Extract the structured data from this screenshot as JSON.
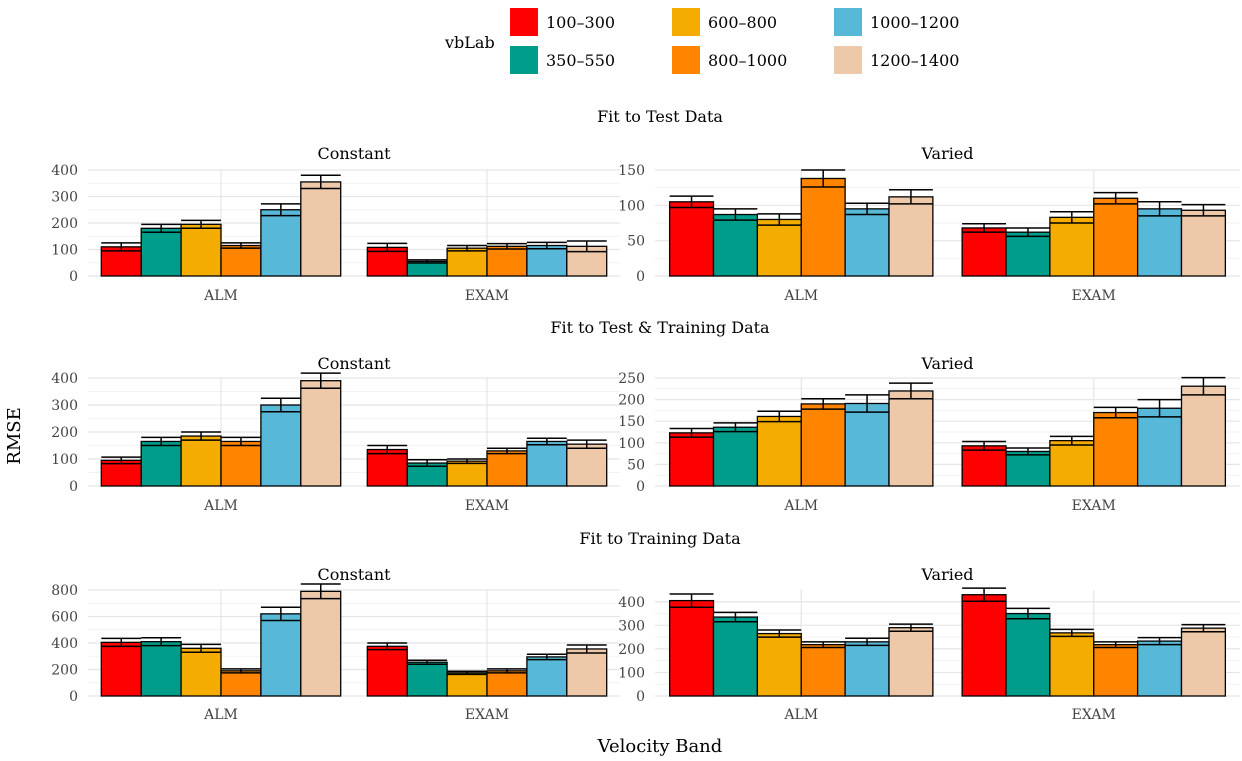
{
  "chart_data": {
    "type": "bar",
    "legend": {
      "title": "vbLab",
      "position": "top",
      "entries": [
        {
          "label": "100–300",
          "color": "#ff0000"
        },
        {
          "label": "350–550",
          "color": "#009e8a"
        },
        {
          "label": "600–800",
          "color": "#f5ac00"
        },
        {
          "label": "800–1000",
          "color": "#ff8400"
        },
        {
          "label": "1000–1200",
          "color": "#57b9d7"
        },
        {
          "label": "1200–1400",
          "color": "#edc9a9"
        }
      ]
    },
    "ylabel": "RMSE",
    "xlabel": "Velocity Band",
    "categories": [
      "ALM",
      "EXAM"
    ],
    "grid": true,
    "rows": [
      {
        "title": "Fit to Test Data",
        "panels": [
          {
            "title": "Constant",
            "ylim": [
              0,
              400
            ],
            "yticks": [
              0,
              100,
              200,
              300,
              400
            ],
            "values": [
              [
                110,
                180,
                195,
                115,
                250,
                355
              ],
              [
                108,
                55,
                105,
                112,
                115,
                112
              ]
            ],
            "errors": [
              [
                15,
                15,
                15,
                10,
                22,
                25
              ],
              [
                15,
                6,
                10,
                10,
                12,
                20
              ]
            ]
          },
          {
            "title": "Varied",
            "ylim": [
              0,
              150
            ],
            "yticks": [
              0,
              50,
              100,
              150
            ],
            "values": [
              [
                105,
                87,
                80,
                138,
                95,
                112
              ],
              [
                68,
                62,
                83,
                110,
                95,
                93
              ]
            ],
            "errors": [
              [
                8,
                8,
                8,
                12,
                8,
                10
              ],
              [
                6,
                6,
                8,
                8,
                10,
                8
              ]
            ]
          }
        ]
      },
      {
        "title": "Fit to Test & Training Data",
        "panels": [
          {
            "title": "Constant",
            "ylim": [
              0,
              400
            ],
            "yticks": [
              0,
              100,
              200,
              300,
              400
            ],
            "values": [
              [
                95,
                165,
                185,
                165,
                300,
                390
              ],
              [
                135,
                85,
                92,
                130,
                165,
                155
              ]
            ],
            "errors": [
              [
                12,
                15,
                15,
                15,
                25,
                28
              ],
              [
                15,
                12,
                8,
                10,
                12,
                15
              ]
            ]
          },
          {
            "title": "Varied",
            "ylim": [
              0,
              250
            ],
            "yticks": [
              0,
              50,
              100,
              150,
              200,
              250
            ],
            "values": [
              [
                123,
                136,
                161,
                190,
                191,
                220
              ],
              [
                93,
                80,
                105,
                170,
                180,
                231
              ]
            ],
            "errors": [
              [
                10,
                10,
                12,
                12,
                20,
                18
              ],
              [
                10,
                8,
                10,
                12,
                20,
                20
              ]
            ]
          }
        ]
      },
      {
        "title": "Fit to Training Data",
        "panels": [
          {
            "title": "Constant",
            "ylim": [
              0,
              800
            ],
            "yticks": [
              0,
              200,
              400,
              600,
              800
            ],
            "values": [
              [
                405,
                410,
                360,
                190,
                620,
                790
              ],
              [
                375,
                255,
                175,
                190,
                295,
                355
              ]
            ],
            "errors": [
              [
                30,
                30,
                30,
                15,
                50,
                55
              ],
              [
                25,
                15,
                12,
                15,
                20,
                30
              ]
            ]
          },
          {
            "title": "Varied",
            "ylim": [
              0,
              450
            ],
            "yticks": [
              0,
              100,
              200,
              300,
              400
            ],
            "values": [
              [
                405,
                335,
                265,
                218,
                230,
                290
              ],
              [
                430,
                350,
                268,
                218,
                233,
                288
              ]
            ],
            "errors": [
              [
                28,
                20,
                15,
                12,
                15,
                15
              ],
              [
                28,
                22,
                15,
                12,
                15,
                15
              ]
            ]
          }
        ]
      }
    ]
  }
}
